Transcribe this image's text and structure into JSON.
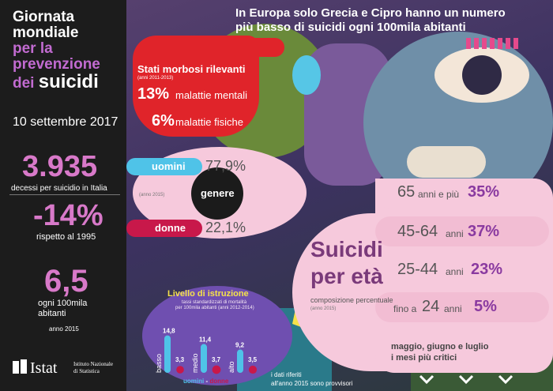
{
  "left": {
    "title_l1": "Giornata",
    "title_l2": "mondiale",
    "title_l3": "per la",
    "title_l4": "prevenzione",
    "title_l5a": "dei",
    "title_l5b": "suicidi",
    "date": "10 settembre 2017",
    "stat1_value": "3.935",
    "stat1_label": "decessi per suicidio in Italia",
    "stat2_value": "-14%",
    "stat2_label": "rispetto al 1995",
    "stat3_value": "6,5",
    "stat3_label1": "ogni 100mila",
    "stat3_label2": "abitanti",
    "stat3_note": "anno 2015",
    "logo_word": "Istat",
    "logo_l1": "Istituto Nazionale",
    "logo_l2": "di Statistica"
  },
  "header": {
    "line1": "In Europa solo Grecia e Cipro hanno un numero",
    "line2": "più basso di suicidi ogni 100mila abitanti"
  },
  "morbid": {
    "title": "Stati morbosi rilevanti",
    "years": "(anni 2011-2013)",
    "v1": "13%",
    "l1": "malattie mentali",
    "v2": "6%",
    "l2": "malattie fisiche"
  },
  "gender": {
    "men_label": "uomini",
    "men_value": "77,9%",
    "center": "genere",
    "year": "(anno 2015)",
    "women_label": "donne",
    "women_value": "22,1%"
  },
  "age": {
    "title1": "Suicidi",
    "title2": "per età",
    "subtitle": "composizione percentuale",
    "year": "(anno 2015)",
    "rows": [
      {
        "num": "65",
        "unit": "anni e più",
        "pct": "35%"
      },
      {
        "num": "45-64",
        "unit": "anni",
        "pct": "37%"
      },
      {
        "num": "25-44",
        "unit": "anni",
        "pct": "23%"
      },
      {
        "pre": "fino a",
        "num": "24",
        "unit": "anni",
        "pct": "5%"
      }
    ],
    "critical1": "maggio, giugno e luglio",
    "critical2": "i mesi più critici"
  },
  "education": {
    "title": "Livello di istruzione",
    "sub1": "tassi standardizzati di mortalità",
    "sub2": "per 100mila abitanti (anni 2012-2014)",
    "legend_m": "uomini",
    "legend_sep": " - ",
    "legend_f": "donne",
    "chart_data": {
      "type": "bar",
      "categories": [
        "basso",
        "medio",
        "alto"
      ],
      "series": [
        {
          "name": "uomini",
          "values": [
            14.8,
            11.4,
            9.2
          ]
        },
        {
          "name": "donne",
          "values": [
            3.3,
            3.7,
            3.5
          ]
        }
      ],
      "value_labels": [
        [
          "14,8",
          "11,4",
          "9,2"
        ],
        [
          "3,3",
          "3,7",
          "3,5"
        ]
      ],
      "colors": {
        "uomini": "#4fc3e8",
        "donne": "#c8184a"
      }
    }
  },
  "footnote": {
    "line1": "i dati riferiti",
    "line2": "all'anno 2015 sono provvisori"
  }
}
